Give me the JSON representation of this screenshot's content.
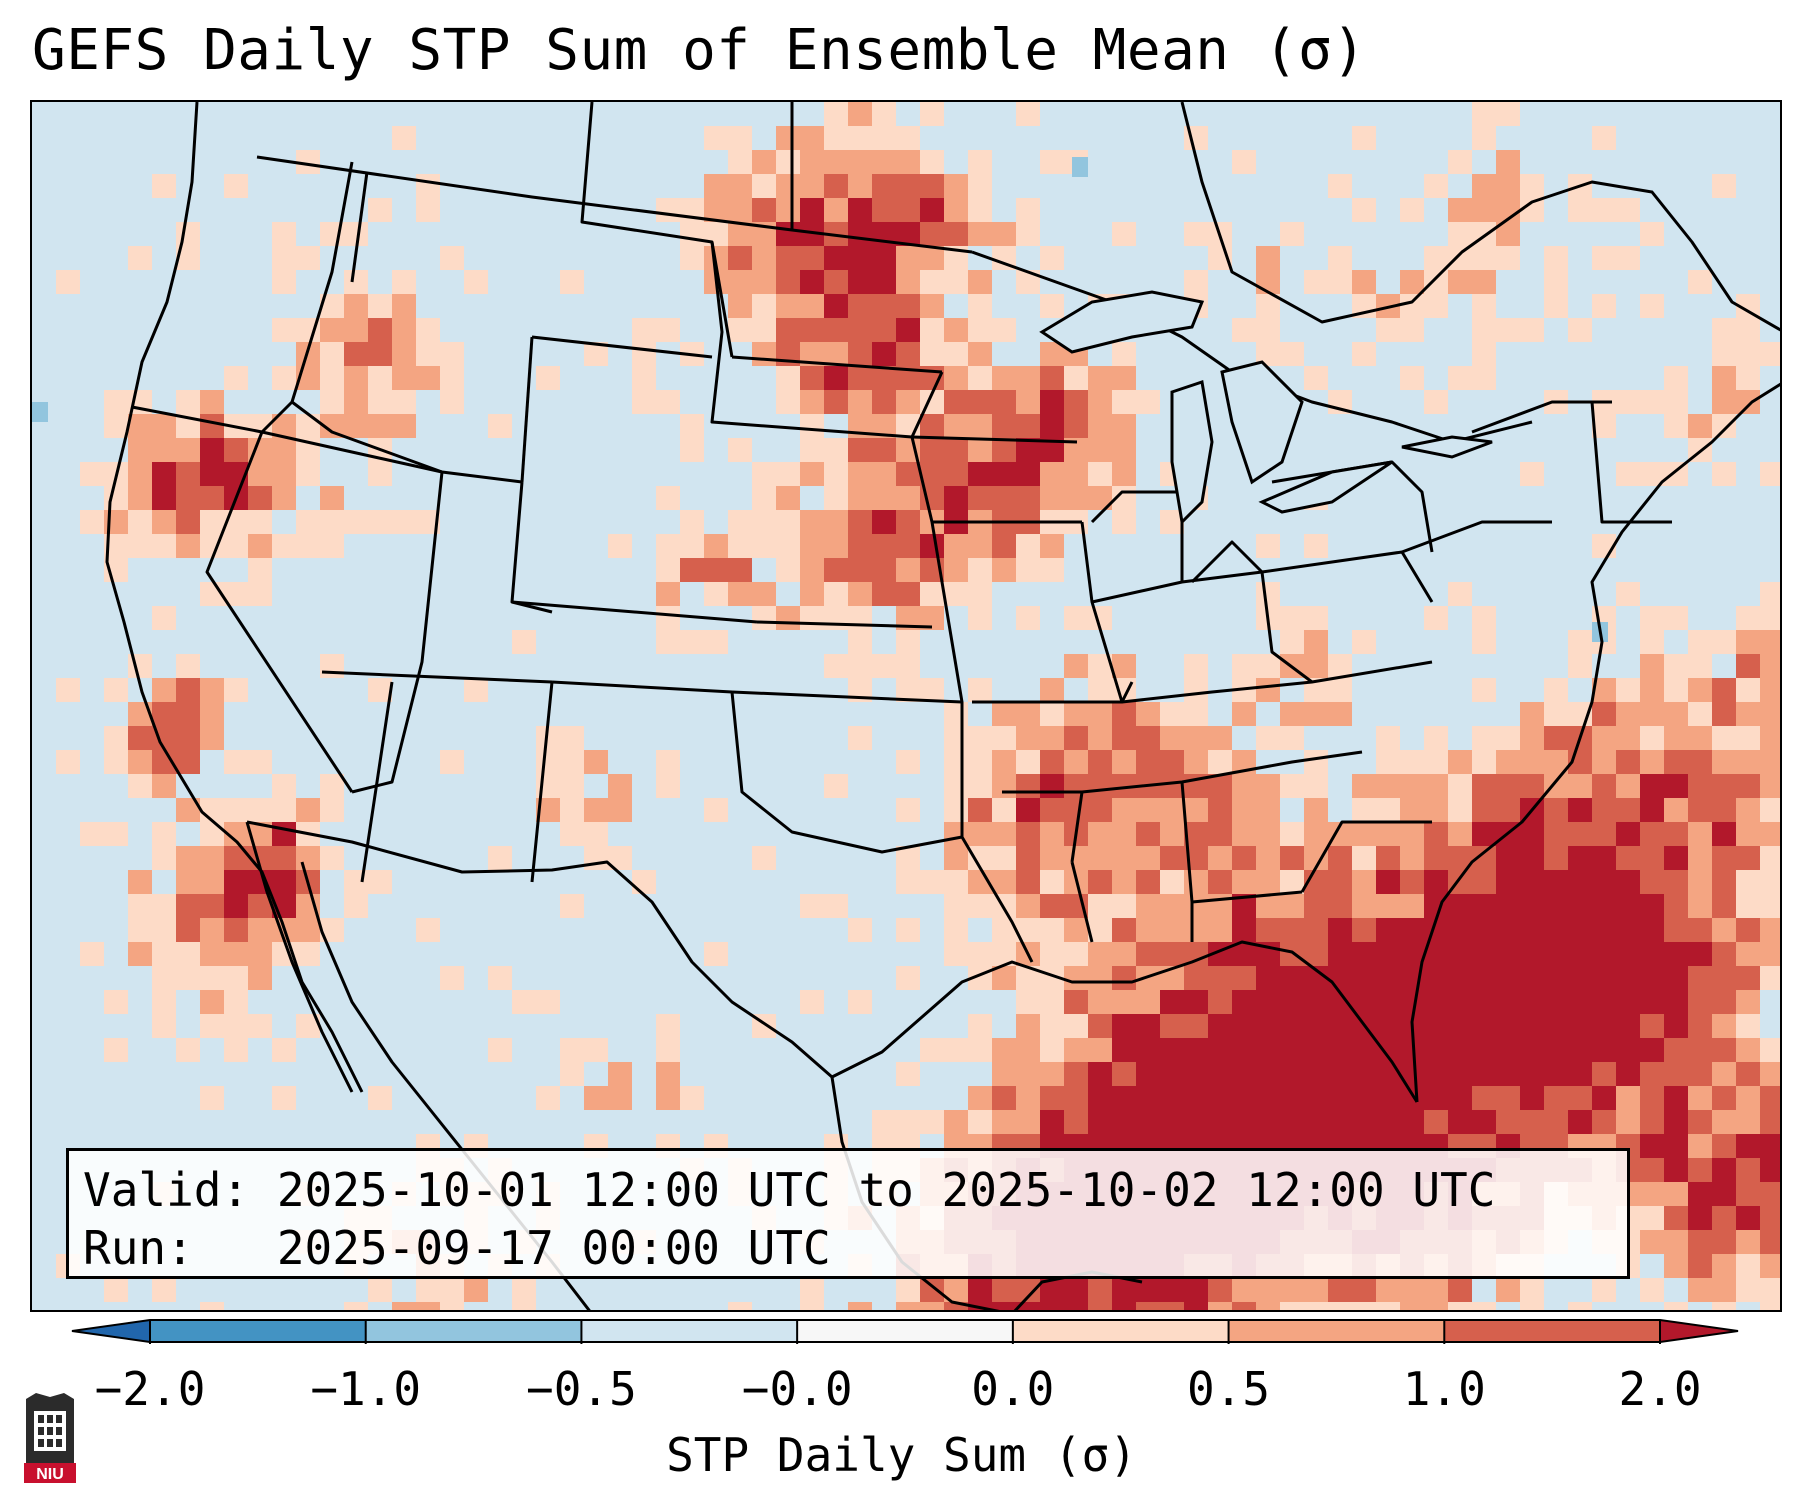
{
  "title": "GEFS Daily STP Sum of Ensemble Mean (σ)",
  "info_box": {
    "valid_line": "Valid: 2025-10-01 12:00 UTC to 2025-10-02 12:00 UTC",
    "run_line": "Run:   2025-09-17 00:00 UTC"
  },
  "colorbar": {
    "label": "STP Daily Sum (σ)",
    "ticks": [
      "−2.0",
      "−1.0",
      "−0.5",
      "−0.0",
      "0.0",
      "0.5",
      "1.0",
      "2.0"
    ],
    "colors": [
      "#2166ac",
      "#4393c3",
      "#92c5de",
      "#d1e5f0",
      "#f7f7f7",
      "#fddbc7",
      "#f4a582",
      "#d6604d",
      "#b2182b"
    ]
  },
  "logo": {
    "text": "NIU"
  },
  "map": {
    "background_color": "#d1e5f0",
    "high_anomaly_regions": [
      "North Dakota",
      "Iowa",
      "Arkansas",
      "Northern California",
      "Gulf of Mexico",
      "Western Atlantic",
      "Pacific off Baja California"
    ]
  }
}
